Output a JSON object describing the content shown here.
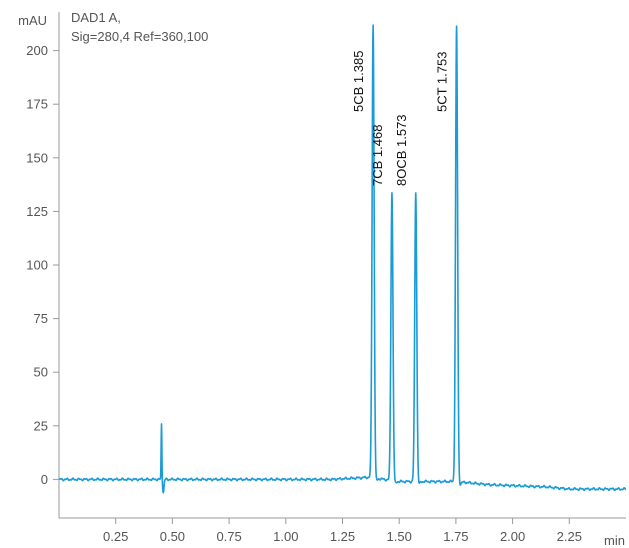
{
  "chart_data": {
    "type": "line",
    "title_lines": [
      "DAD1 A,",
      "Sig=280,4 Ref=360,100"
    ],
    "ylabel": "mAU",
    "xlabel": "min",
    "xlim": [
      0.0,
      2.5
    ],
    "ylim": [
      -18,
      218
    ],
    "x_ticks": [
      0.25,
      0.5,
      0.75,
      1.0,
      1.25,
      1.5,
      1.75,
      2.0,
      2.25
    ],
    "x_tick_labels": [
      "0.25",
      "0.50",
      "0.75",
      "1.00",
      "1.25",
      "1.50",
      "1.75",
      "2.00",
      "2.25"
    ],
    "y_ticks": [
      0,
      25,
      50,
      75,
      100,
      125,
      150,
      175,
      200
    ],
    "y_tick_labels": [
      "0",
      "25",
      "50",
      "75",
      "100",
      "125",
      "150",
      "175",
      "200"
    ],
    "grid": false,
    "line_color": "#1a9ad6",
    "peaks": [
      {
        "label": "5CB 1.385",
        "time": 1.385,
        "height": 212
      },
      {
        "label": "7CB 1.468",
        "time": 1.468,
        "height": 134
      },
      {
        "label": "8OCB 1.573",
        "time": 1.573,
        "height": 134
      },
      {
        "label": "5CT 1.753",
        "time": 1.753,
        "height": 211
      }
    ],
    "minor_peak": {
      "time": 0.452,
      "height": 26,
      "dip": -6
    },
    "baseline": [
      [
        0.0,
        0.0
      ],
      [
        1.2,
        0.0
      ],
      [
        1.37,
        1.0
      ],
      [
        1.5,
        -1.0
      ],
      [
        1.75,
        -1.0
      ],
      [
        1.9,
        -2.5
      ],
      [
        2.15,
        -3.5
      ],
      [
        2.25,
        -4.5
      ],
      [
        2.5,
        -4.5
      ]
    ]
  }
}
